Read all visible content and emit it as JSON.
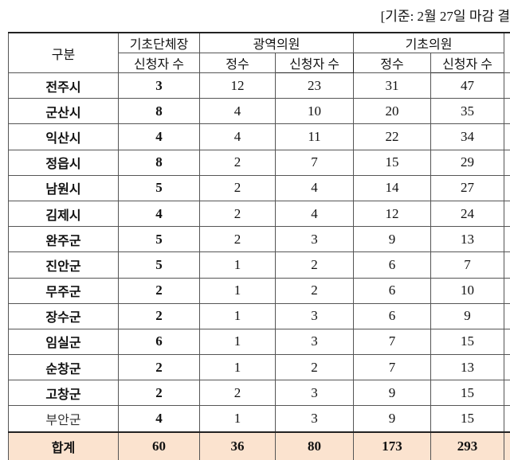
{
  "note": "[기준: 2월 27일 마감 결",
  "table": {
    "header": {
      "group": "구분",
      "mayor": [
        "기초단체장",
        "신청자 수"
      ],
      "metro": {
        "title": "광역의원",
        "quota": "정수",
        "applicants": "신청자 수"
      },
      "local": {
        "title": "기초의원",
        "quota": "정수",
        "applicants": "신청자 수"
      }
    },
    "rows": [
      [
        "전주시",
        3,
        12,
        23,
        31,
        47
      ],
      [
        "군산시",
        8,
        4,
        10,
        20,
        35
      ],
      [
        "익산시",
        4,
        4,
        11,
        22,
        34
      ],
      [
        "정읍시",
        8,
        2,
        7,
        15,
        29
      ],
      [
        "남원시",
        5,
        2,
        4,
        14,
        27
      ],
      [
        "김제시",
        4,
        2,
        4,
        12,
        24
      ],
      [
        "완주군",
        5,
        2,
        3,
        9,
        13
      ],
      [
        "진안군",
        5,
        1,
        2,
        6,
        7
      ],
      [
        "무주군",
        2,
        1,
        2,
        6,
        10
      ],
      [
        "장수군",
        2,
        1,
        3,
        6,
        9
      ],
      [
        "임실군",
        6,
        1,
        3,
        7,
        15
      ],
      [
        "순창군",
        2,
        1,
        2,
        7,
        13
      ],
      [
        "고창군",
        2,
        2,
        3,
        9,
        15
      ],
      [
        "부안군",
        4,
        1,
        3,
        9,
        15
      ]
    ],
    "total": [
      "합계",
      60,
      36,
      80,
      173,
      293
    ]
  }
}
